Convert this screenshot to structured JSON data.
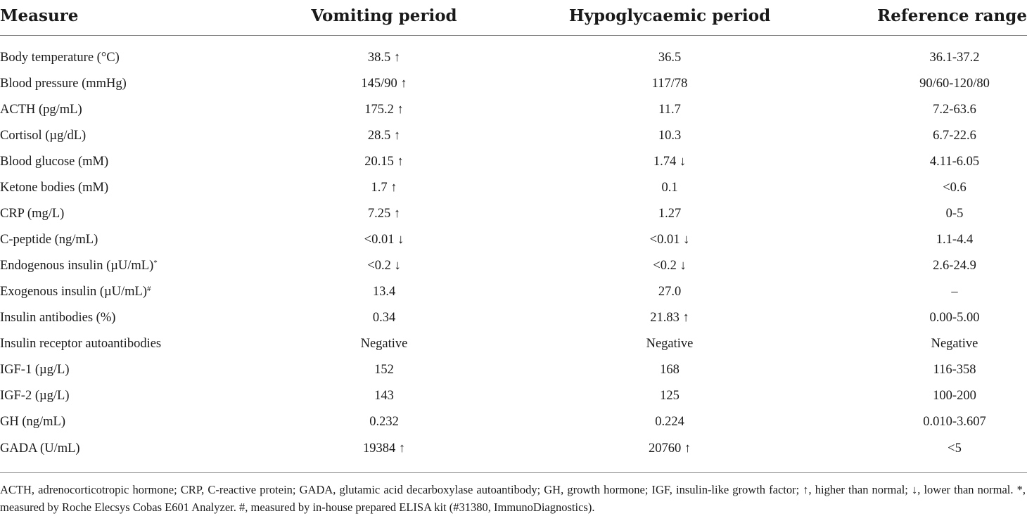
{
  "table": {
    "headers": [
      "Measure",
      "Vomiting period",
      "Hypoglycaemic period",
      "Reference range"
    ],
    "rows": [
      {
        "measure": "Body temperature (°C)",
        "vomiting": "38.5 ↑",
        "hypoglycaemic": "36.5",
        "reference": "36.1-37.2"
      },
      {
        "measure": "Blood pressure (mmHg)",
        "vomiting": "145/90 ↑",
        "hypoglycaemic": "117/78",
        "reference": "90/60-120/80"
      },
      {
        "measure": "ACTH (pg/mL)",
        "vomiting": "175.2 ↑",
        "hypoglycaemic": "11.7",
        "reference": "7.2-63.6"
      },
      {
        "measure": "Cortisol (µg/dL)",
        "vomiting": "28.5 ↑",
        "hypoglycaemic": "10.3",
        "reference": "6.7-22.6"
      },
      {
        "measure": "Blood glucose (mM)",
        "vomiting": "20.15 ↑",
        "hypoglycaemic": "1.74 ↓",
        "reference": "4.11-6.05"
      },
      {
        "measure": "Ketone bodies (mM)",
        "vomiting": "1.7 ↑",
        "hypoglycaemic": "0.1",
        "reference": "<0.6"
      },
      {
        "measure": "CRP (mg/L)",
        "vomiting": "7.25 ↑",
        "hypoglycaemic": "1.27",
        "reference": "0-5"
      },
      {
        "measure": "C-peptide (ng/mL)",
        "vomiting": "<0.01 ↓",
        "hypoglycaemic": "<0.01 ↓",
        "reference": "1.1-4.4"
      },
      {
        "measure": "Endogenous insulin (µU/mL)",
        "measure_mark": "*",
        "vomiting": "<0.2 ↓",
        "hypoglycaemic": "<0.2 ↓",
        "reference": "2.6-24.9"
      },
      {
        "measure": "Exogenous insulin (µU/mL)",
        "measure_mark": "#",
        "vomiting": "13.4",
        "hypoglycaemic": "27.0",
        "reference": "–"
      },
      {
        "measure": "Insulin antibodies (%)",
        "vomiting": "0.34",
        "hypoglycaemic": "21.83 ↑",
        "reference": "0.00-5.00"
      },
      {
        "measure": "Insulin receptor autoantibodies",
        "vomiting": "Negative",
        "hypoglycaemic": "Negative",
        "reference": "Negative"
      },
      {
        "measure": "IGF-1 (µg/L)",
        "vomiting": "152",
        "hypoglycaemic": "168",
        "reference": "116-358"
      },
      {
        "measure": "IGF-2 (µg/L)",
        "vomiting": "143",
        "hypoglycaemic": "125",
        "reference": "100-200"
      },
      {
        "measure": "GH (ng/mL)",
        "vomiting": "0.232",
        "hypoglycaemic": "0.224",
        "reference": "0.010-3.607"
      },
      {
        "measure": "GADA (U/mL)",
        "vomiting": "19384 ↑",
        "hypoglycaemic": "20760 ↑",
        "reference": "<5"
      }
    ]
  },
  "footnote": "ACTH, adrenocorticotropic hormone; CRP, C-reactive protein; GADA, glutamic acid decarboxylase autoantibody; GH, growth hormone; IGF, insulin-like growth factor; ↑, higher than normal; ↓, lower than normal. *, measured by Roche Elecsys Cobas E601 Analyzer. #, measured by in-house prepared ELISA kit (#31380, ImmunoDiagnostics)."
}
